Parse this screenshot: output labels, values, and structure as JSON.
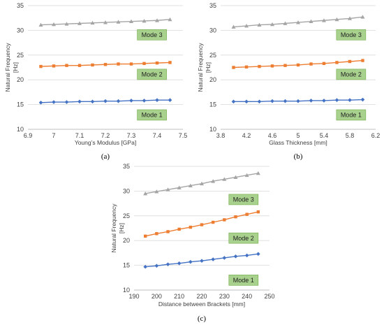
{
  "colors": {
    "mode1": "#4472C4",
    "mode2": "#ED7D31",
    "mode3": "#A5A5A5",
    "label_box_fill": "#A9D18E",
    "label_box_stroke": "#70AD47",
    "grid": "#d9d9d9",
    "axis": "#bfbfbf"
  },
  "chart_data": [
    {
      "type": "line",
      "panel_label": "(a)",
      "xlabel": "Young’s Modulus [GPa]",
      "ylabel": [
        "Natural Frequency",
        "[Hz]"
      ],
      "xlim": [
        6.9,
        7.5
      ],
      "ylim": [
        10,
        35
      ],
      "xticks": [
        6.9,
        7.0,
        7.1,
        7.2,
        7.3,
        7.4,
        7.5
      ],
      "xtick_labels": [
        "6.9",
        "7",
        "7.1",
        "7.2",
        "7.3",
        "7.4",
        "7.5"
      ],
      "yticks": [
        10,
        15,
        20,
        25,
        30,
        35
      ],
      "grid": "horizontal",
      "x": [
        6.95,
        7.0,
        7.05,
        7.1,
        7.15,
        7.2,
        7.25,
        7.3,
        7.35,
        7.4,
        7.45
      ],
      "series": [
        {
          "key": "mode1",
          "marker": "diamond",
          "values": [
            15.4,
            15.5,
            15.5,
            15.6,
            15.6,
            15.7,
            15.7,
            15.8,
            15.8,
            15.9,
            15.9
          ]
        },
        {
          "key": "mode2",
          "marker": "square",
          "values": [
            22.7,
            22.8,
            22.9,
            22.9,
            23.0,
            23.1,
            23.2,
            23.2,
            23.3,
            23.4,
            23.5
          ]
        },
        {
          "key": "mode3",
          "marker": "triangle",
          "values": [
            31.1,
            31.2,
            31.3,
            31.4,
            31.5,
            31.6,
            31.7,
            31.8,
            31.9,
            32.0,
            32.2
          ]
        }
      ],
      "mode_labels": [
        {
          "text": "Mode 3",
          "x": 7.38,
          "y": 29.1
        },
        {
          "text": "Mode 2",
          "x": 7.38,
          "y": 21.1
        },
        {
          "text": "Mode 1",
          "x": 7.38,
          "y": 12.9
        }
      ]
    },
    {
      "type": "line",
      "panel_label": "(b)",
      "xlabel": "Glass Thickness [mm]",
      "ylabel": [
        "Natural Frequency",
        "[Hz]"
      ],
      "xlim": [
        3.8,
        6.2
      ],
      "ylim": [
        10,
        35
      ],
      "xticks": [
        3.8,
        4.2,
        4.6,
        5.0,
        5.4,
        5.8,
        6.2
      ],
      "xtick_labels": [
        "3.8",
        "4.2",
        "4.6",
        "5",
        "5.4",
        "5.8",
        "6.2"
      ],
      "yticks": [
        10,
        15,
        20,
        25,
        30,
        35
      ],
      "grid": "horizontal",
      "x": [
        4.0,
        4.2,
        4.4,
        4.6,
        4.8,
        5.0,
        5.2,
        5.4,
        5.6,
        5.8,
        6.0
      ],
      "series": [
        {
          "key": "mode1",
          "marker": "diamond",
          "values": [
            15.6,
            15.6,
            15.6,
            15.7,
            15.7,
            15.7,
            15.8,
            15.8,
            15.9,
            15.9,
            16.0
          ]
        },
        {
          "key": "mode2",
          "marker": "square",
          "values": [
            22.5,
            22.6,
            22.7,
            22.8,
            22.9,
            23.0,
            23.2,
            23.3,
            23.5,
            23.7,
            23.9
          ]
        },
        {
          "key": "mode3",
          "marker": "triangle",
          "values": [
            30.7,
            30.9,
            31.1,
            31.2,
            31.4,
            31.6,
            31.8,
            32.0,
            32.2,
            32.4,
            32.7
          ]
        }
      ],
      "mode_labels": [
        {
          "text": "Mode 3",
          "x": 5.82,
          "y": 29.1
        },
        {
          "text": "Mode 2",
          "x": 5.82,
          "y": 21.1
        },
        {
          "text": "Mode 1",
          "x": 5.82,
          "y": 12.9
        }
      ]
    },
    {
      "type": "line",
      "panel_label": "(c)",
      "xlabel": "Distance between Brackets [mm]",
      "ylabel": [
        "Natural Frequency",
        "[Hz]"
      ],
      "xlim": [
        190,
        250
      ],
      "ylim": [
        10,
        35
      ],
      "xticks": [
        190,
        200,
        210,
        220,
        230,
        240,
        250
      ],
      "xtick_labels": [
        "190",
        "200",
        "210",
        "220",
        "230",
        "240",
        "250"
      ],
      "yticks": [
        10,
        15,
        20,
        25,
        30,
        35
      ],
      "grid": "horizontal",
      "x": [
        195,
        200,
        205,
        210,
        215,
        220,
        225,
        230,
        235,
        240,
        245
      ],
      "series": [
        {
          "key": "mode1",
          "marker": "diamond",
          "values": [
            14.7,
            14.9,
            15.2,
            15.4,
            15.7,
            15.9,
            16.2,
            16.5,
            16.8,
            17.0,
            17.3
          ]
        },
        {
          "key": "mode2",
          "marker": "square",
          "values": [
            20.9,
            21.4,
            21.8,
            22.3,
            22.7,
            23.2,
            23.7,
            24.2,
            24.8,
            25.3,
            25.8
          ]
        },
        {
          "key": "mode3",
          "marker": "triangle",
          "values": [
            29.5,
            29.9,
            30.3,
            30.7,
            31.1,
            31.5,
            32.0,
            32.4,
            32.8,
            33.2,
            33.6
          ]
        }
      ],
      "mode_labels": [
        {
          "text": "Mode 3",
          "x": 238.5,
          "y": 28.3
        },
        {
          "text": "Mode 2",
          "x": 238.5,
          "y": 20.5
        },
        {
          "text": "Mode 1",
          "x": 238.5,
          "y": 12.0
        }
      ]
    }
  ]
}
